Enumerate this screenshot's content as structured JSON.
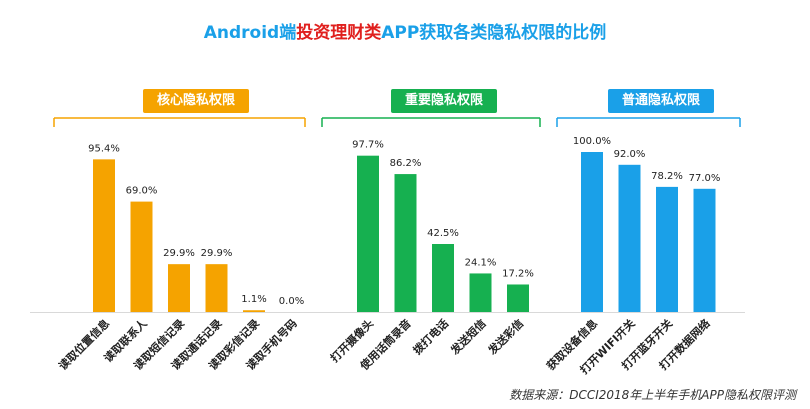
{
  "title": {
    "prefix": "Android端",
    "highlight": "投资理财类",
    "suffix": "APP获取各类隐私权限的比例"
  },
  "source": "数据来源：DCCI2018年上半年手机APP隐私权限评测",
  "colors": {
    "title": "#1aa0e8",
    "highlight": "#e0201e",
    "group_core": "#f5a300",
    "group_important": "#16b050",
    "group_normal": "#1aa0e8"
  },
  "chart_data": {
    "type": "bar",
    "unit": "%",
    "ylim": [
      0,
      100
    ],
    "grid": false,
    "groups": [
      {
        "name": "核心隐私权限",
        "color": "#f5a300",
        "categories": [
          "读取位置信息",
          "读取联系人",
          "读取短信记录",
          "读取通话记录",
          "读取彩信记录",
          "读取手机号码"
        ],
        "values": [
          95.4,
          69.0,
          29.9,
          29.9,
          1.1,
          0.0
        ]
      },
      {
        "name": "重要隐私权限",
        "color": "#16b050",
        "categories": [
          "打开摄像头",
          "使用话筒录音",
          "拨打电话",
          "发送短信",
          "发送彩信"
        ],
        "values": [
          97.7,
          86.2,
          42.5,
          24.1,
          17.2
        ]
      },
      {
        "name": "普通隐私权限",
        "color": "#1aa0e8",
        "categories": [
          "获取设备信息",
          "打开WIFI开关",
          "打开蓝牙开关",
          "打开数据网络"
        ],
        "values": [
          100.0,
          92.0,
          78.2,
          77.0
        ]
      }
    ]
  }
}
